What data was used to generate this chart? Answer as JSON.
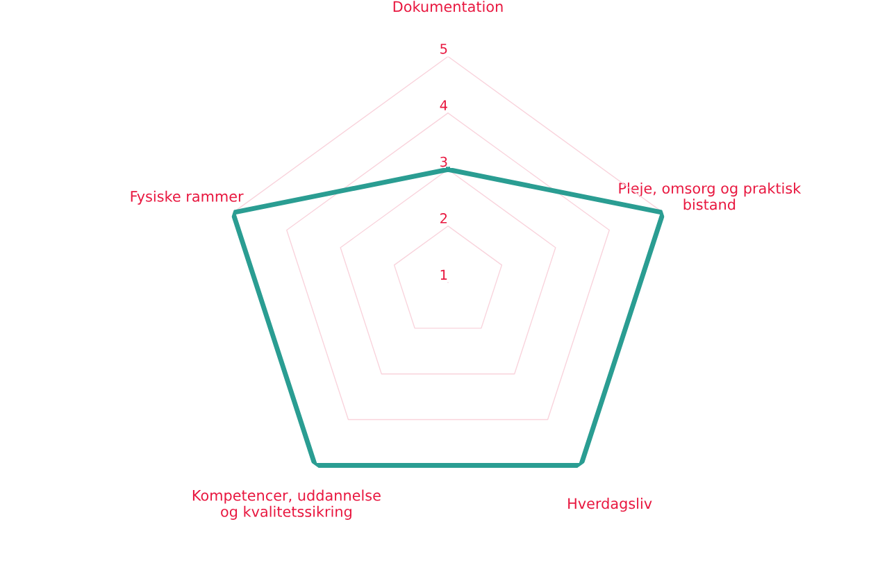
{
  "chart_data": {
    "type": "radar",
    "categories": [
      "Dokumentation",
      "Pleje, omsorg og praktisk\nbistand",
      "Hverdagsliv",
      "Kompetencer, uddannelse\nog kvalitetssikring",
      "Fysiske rammer"
    ],
    "series": [
      {
        "color": "#2a9d92",
        "values": [
          3,
          5,
          5,
          5,
          5
        ]
      }
    ],
    "ylim": [
      1,
      5
    ],
    "yticks": [
      1,
      2,
      3,
      4,
      5
    ],
    "grid": true,
    "marker": "none",
    "line_style": "solid"
  }
}
